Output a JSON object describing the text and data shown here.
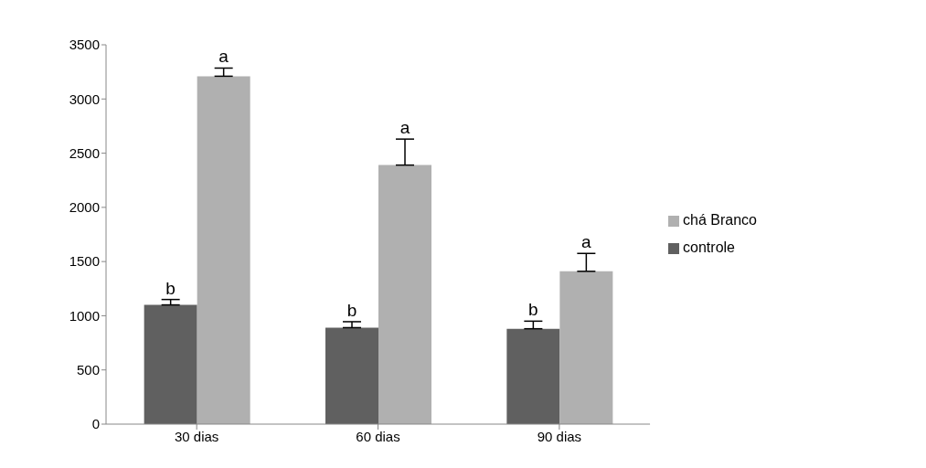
{
  "chart_data": {
    "type": "bar",
    "categories": [
      "30 dias",
      "60 dias",
      "90 dias"
    ],
    "series": [
      {
        "name": "controle",
        "color": "#606060",
        "values": [
          1100,
          890,
          880
        ],
        "errors": [
          [
            1100,
            1150
          ],
          [
            890,
            945
          ],
          [
            880,
            950
          ]
        ]
      },
      {
        "name": "chá Branco",
        "color": "#b0b0b0",
        "values": [
          3210,
          2390,
          1410
        ],
        "errors": [
          [
            3210,
            3285
          ],
          [
            2390,
            2630
          ],
          [
            1410,
            1575
          ]
        ]
      }
    ],
    "annotations": [
      {
        "text": "b",
        "x": "30 dias",
        "y": 1100
      },
      {
        "text": "a",
        "x": "30 dias",
        "y": 3210
      },
      {
        "text": "b",
        "x": "60 dias",
        "y": 890
      },
      {
        "text": "a",
        "x": "60 dias",
        "y": 2390
      },
      {
        "text": "b",
        "x": "90 dias",
        "y": 880
      },
      {
        "text": "a",
        "x": "90 dias",
        "y": 1410
      }
    ],
    "ylim": [
      0,
      3500
    ],
    "yticks": [
      0,
      500,
      1000,
      1500,
      2000,
      2500,
      3000,
      3500
    ],
    "grid": false,
    "legend": "right"
  }
}
